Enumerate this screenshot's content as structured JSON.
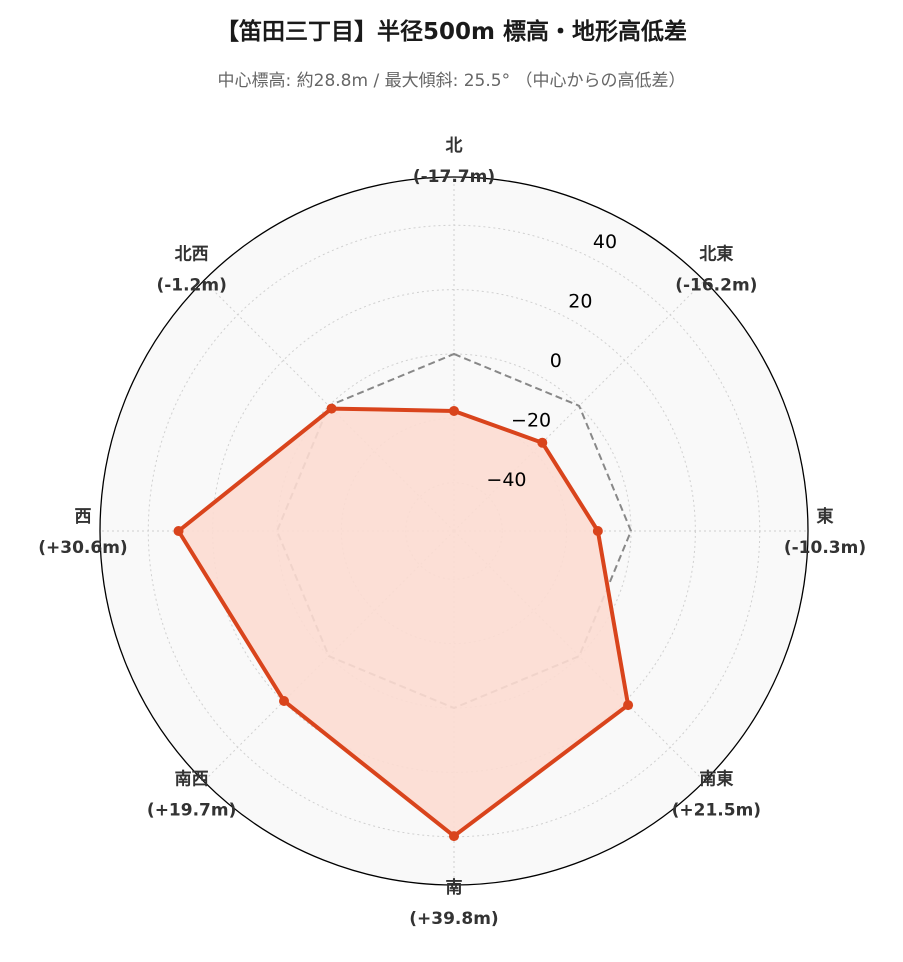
{
  "title": "【笛田三丁目】半径500m 標高・地形高低差",
  "subtitle": "中心標高: 約28.8m / 最大傾斜: 25.5° （中心からの高低差）",
  "chart_data": {
    "type": "radar",
    "categories": [
      "北",
      "北東",
      "東",
      "南東",
      "南",
      "南西",
      "西",
      "北西"
    ],
    "category_labels": [
      "(-17.7m)",
      "(-16.2m)",
      "(-10.3m)",
      "(+21.5m)",
      "(+39.8m)",
      "(+19.7m)",
      "(+30.6m)",
      "(-1.2m)"
    ],
    "series": [
      {
        "values": [
          -17.7,
          -16.2,
          -10.3,
          21.5,
          39.8,
          19.7,
          30.6,
          -1.2
        ],
        "color": "#d9441c",
        "fill": "#fcdcd2"
      }
    ],
    "reference": {
      "value": 0,
      "color": "#888888",
      "style": "dashed"
    },
    "r_ticks": [
      "−40",
      "−20",
      "0",
      "20",
      "40"
    ],
    "r_tick_values": [
      -40,
      -20,
      0,
      20,
      40
    ],
    "rlim": [
      -55,
      55
    ],
    "grid": true,
    "background": "#f9f9f9"
  }
}
